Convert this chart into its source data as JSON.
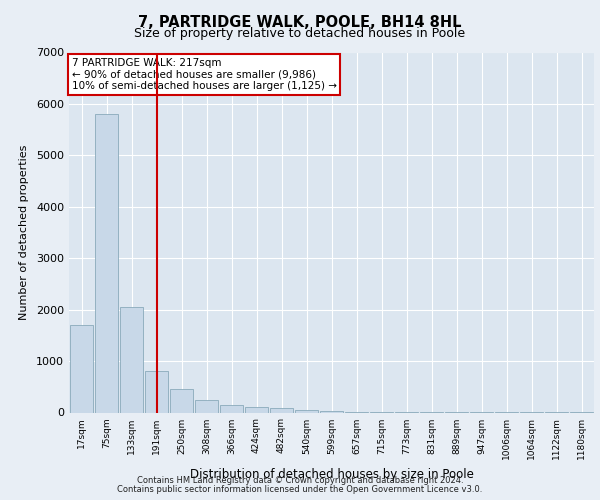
{
  "title": "7, PARTRIDGE WALK, POOLE, BH14 8HL",
  "subtitle": "Size of property relative to detached houses in Poole",
  "xlabel": "Distribution of detached houses by size in Poole",
  "ylabel": "Number of detached properties",
  "footer_line1": "Contains HM Land Registry data © Crown copyright and database right 2024.",
  "footer_line2": "Contains public sector information licensed under the Open Government Licence v3.0.",
  "annotation_line1": "7 PARTRIDGE WALK: 217sqm",
  "annotation_line2": "← 90% of detached houses are smaller (9,986)",
  "annotation_line3": "10% of semi-detached houses are larger (1,125) →",
  "bar_color": "#c8d8e8",
  "bar_edge_color": "#8aaabb",
  "red_line_color": "#cc0000",
  "background_color": "#e8eef5",
  "plot_bg_color": "#dce6f0",
  "grid_color": "#ffffff",
  "categories": [
    "17sqm",
    "75sqm",
    "133sqm",
    "191sqm",
    "250sqm",
    "308sqm",
    "366sqm",
    "424sqm",
    "482sqm",
    "540sqm",
    "599sqm",
    "657sqm",
    "715sqm",
    "773sqm",
    "831sqm",
    "889sqm",
    "947sqm",
    "1006sqm",
    "1064sqm",
    "1122sqm",
    "1180sqm"
  ],
  "values": [
    1700,
    5800,
    2050,
    800,
    450,
    250,
    150,
    100,
    80,
    50,
    30,
    5,
    5,
    5,
    2,
    2,
    1,
    1,
    1,
    1,
    1
  ],
  "red_line_x": 3.0,
  "ylim": [
    0,
    7000
  ],
  "yticks": [
    0,
    1000,
    2000,
    3000,
    4000,
    5000,
    6000,
    7000
  ]
}
